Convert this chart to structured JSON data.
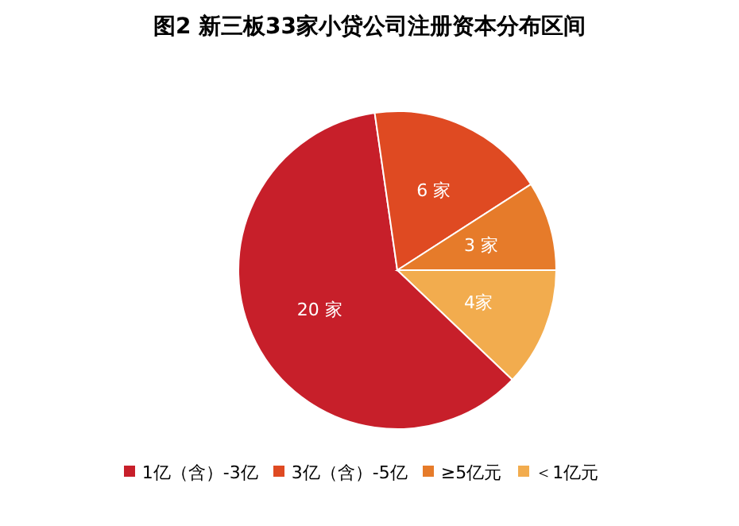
{
  "chart_data": {
    "type": "pie",
    "title": "图2 新三板33家小贷公司注册资本分布区间",
    "categories": [
      "＜1亿元",
      "1亿（含）-3亿",
      "3亿（含）-5亿",
      "≥5亿元"
    ],
    "values": [
      4,
      20,
      6,
      3
    ],
    "colors": [
      "#f2ac4e",
      "#c71f2a",
      "#df4a22",
      "#e67b2a"
    ],
    "value_labels": [
      "4家",
      "20 家",
      "6 家",
      "3 家"
    ],
    "legend": "bottom"
  }
}
